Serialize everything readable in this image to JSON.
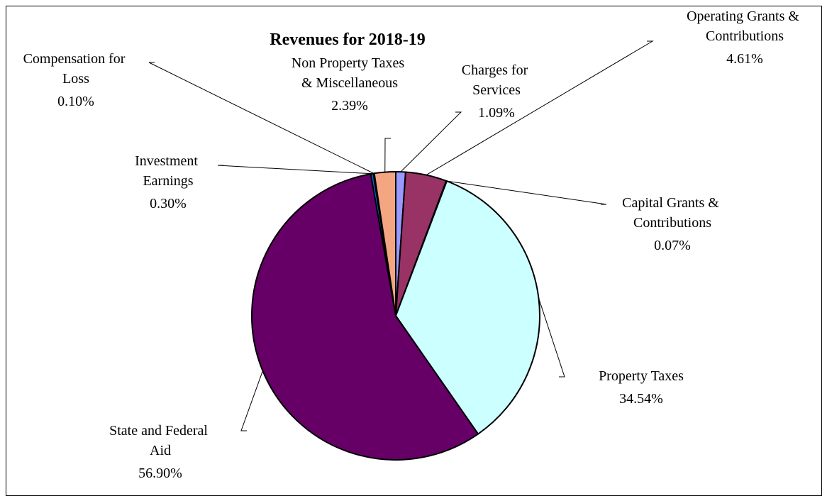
{
  "chart_data": {
    "type": "pie",
    "title": "Revenues for 2018-19",
    "categories": [
      "Charges for Services",
      "Operating Grants & Contributions",
      "Capital Grants & Contributions",
      "Property Taxes",
      "State and Federal Aid",
      "Investment Earnings",
      "Compensation for Loss",
      "Non Property Taxes & Miscellaneous"
    ],
    "values": [
      1.09,
      4.61,
      0.07,
      34.54,
      56.9,
      0.3,
      0.1,
      2.39
    ],
    "value_labels": [
      "1.09%",
      "4.61%",
      "0.07%",
      "34.54%",
      "56.90%",
      "0.30%",
      "0.10%",
      "2.39%"
    ],
    "colors": [
      "#9999ff",
      "#993366",
      "#ffffcc",
      "#ccffff",
      "#660066",
      "#0066cc",
      "#ccccff",
      "#f4a582"
    ]
  }
}
